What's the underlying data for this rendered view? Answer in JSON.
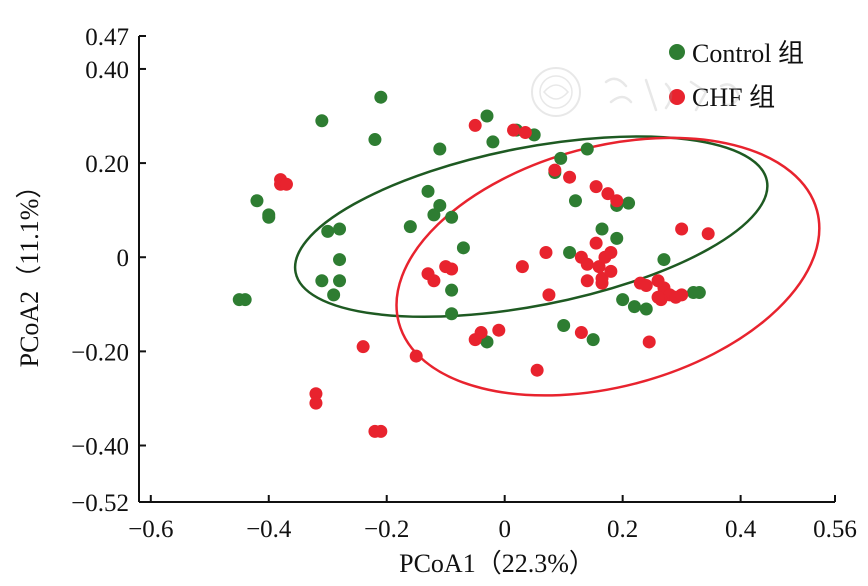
{
  "chart_data": {
    "type": "scatter",
    "xlabel": "PCoA1（22.3%）",
    "ylabel": "PCoA2（11.1%）",
    "xlim": [
      -0.62,
      0.56
    ],
    "ylim": [
      -0.52,
      0.47
    ],
    "xticks": [
      -0.6,
      -0.4,
      -0.2,
      0,
      0.2,
      0.4,
      0.56
    ],
    "xtick_labels": [
      "−0.6",
      "−0.4",
      "−0.2",
      "0",
      "0.2",
      "0.4",
      "0.56"
    ],
    "yticks": [
      -0.52,
      -0.4,
      -0.2,
      0,
      0.2,
      0.4,
      0.47
    ],
    "ytick_labels": [
      "−0.52",
      "−0.40",
      "−0.20",
      "0",
      "0.20",
      "0.40",
      "0.47"
    ],
    "grid": false,
    "legend_position": "top-right",
    "series": [
      {
        "name": "Control 组",
        "color": "#2e7d32",
        "points": [
          [
            -0.45,
            -0.09
          ],
          [
            -0.44,
            -0.09
          ],
          [
            -0.42,
            0.12
          ],
          [
            -0.4,
            0.09
          ],
          [
            -0.4,
            0.085
          ],
          [
            -0.31,
            0.29
          ],
          [
            -0.31,
            -0.05
          ],
          [
            -0.3,
            0.055
          ],
          [
            -0.29,
            -0.08
          ],
          [
            -0.28,
            0.06
          ],
          [
            -0.28,
            -0.005
          ],
          [
            -0.28,
            -0.05
          ],
          [
            -0.22,
            0.25
          ],
          [
            -0.21,
            0.34
          ],
          [
            -0.16,
            0.065
          ],
          [
            -0.13,
            0.14
          ],
          [
            -0.12,
            0.09
          ],
          [
            -0.11,
            0.11
          ],
          [
            -0.09,
            0.085
          ],
          [
            -0.09,
            -0.07
          ],
          [
            -0.09,
            -0.12
          ],
          [
            -0.11,
            0.23
          ],
          [
            -0.07,
            0.02
          ],
          [
            -0.04,
            -0.17
          ],
          [
            -0.03,
            -0.18
          ],
          [
            -0.03,
            0.3
          ],
          [
            -0.02,
            0.245
          ],
          [
            0.02,
            0.27
          ],
          [
            0.05,
            0.26
          ],
          [
            0.085,
            0.18
          ],
          [
            0.095,
            0.21
          ],
          [
            0.11,
            0.01
          ],
          [
            0.12,
            0.12
          ],
          [
            0.14,
            0.23
          ],
          [
            0.15,
            -0.175
          ],
          [
            0.1,
            -0.145
          ],
          [
            0.165,
            0.06
          ],
          [
            0.19,
            0.04
          ],
          [
            0.19,
            0.11
          ],
          [
            0.21,
            0.115
          ],
          [
            0.2,
            -0.09
          ],
          [
            0.22,
            -0.105
          ],
          [
            0.24,
            -0.11
          ],
          [
            0.27,
            -0.005
          ],
          [
            0.32,
            -0.075
          ],
          [
            0.33,
            -0.075
          ]
        ]
      },
      {
        "name": "CHF 组",
        "color": "#e8232e",
        "points": [
          [
            -0.38,
            0.165
          ],
          [
            -0.38,
            0.155
          ],
          [
            -0.37,
            0.155
          ],
          [
            -0.32,
            -0.29
          ],
          [
            -0.32,
            -0.31
          ],
          [
            -0.24,
            -0.19
          ],
          [
            -0.22,
            -0.37
          ],
          [
            -0.21,
            -0.37
          ],
          [
            -0.15,
            -0.21
          ],
          [
            -0.13,
            -0.035
          ],
          [
            -0.12,
            -0.05
          ],
          [
            -0.1,
            -0.02
          ],
          [
            -0.09,
            -0.025
          ],
          [
            -0.05,
            0.28
          ],
          [
            -0.05,
            -0.175
          ],
          [
            -0.04,
            -0.16
          ],
          [
            -0.01,
            -0.155
          ],
          [
            0.015,
            0.27
          ],
          [
            0.035,
            0.265
          ],
          [
            0.03,
            -0.02
          ],
          [
            0.07,
            0.01
          ],
          [
            0.075,
            -0.08
          ],
          [
            0.085,
            0.185
          ],
          [
            0.11,
            0.17
          ],
          [
            0.13,
            -0.16
          ],
          [
            0.13,
            0.0
          ],
          [
            0.14,
            -0.015
          ],
          [
            0.14,
            -0.05
          ],
          [
            0.155,
            0.15
          ],
          [
            0.155,
            0.03
          ],
          [
            0.16,
            -0.02
          ],
          [
            0.165,
            -0.055
          ],
          [
            0.165,
            -0.045
          ],
          [
            0.17,
            0.0
          ],
          [
            0.175,
            0.135
          ],
          [
            0.18,
            -0.03
          ],
          [
            0.18,
            0.01
          ],
          [
            0.19,
            0.12
          ],
          [
            0.23,
            -0.055
          ],
          [
            0.24,
            -0.06
          ],
          [
            0.245,
            -0.18
          ],
          [
            0.26,
            -0.05
          ],
          [
            0.27,
            -0.065
          ],
          [
            0.27,
            -0.075
          ],
          [
            0.28,
            -0.08
          ],
          [
            0.29,
            -0.085
          ],
          [
            0.3,
            -0.08
          ],
          [
            0.3,
            0.06
          ],
          [
            0.345,
            0.05
          ],
          [
            0.055,
            -0.24
          ],
          [
            0.265,
            -0.09
          ],
          [
            0.26,
            -0.085
          ]
        ]
      }
    ],
    "ellipses": [
      {
        "series": "Control 组",
        "cx": 0.045,
        "cy": 0.065,
        "rx": 0.407,
        "ry": 0.168,
        "angle_deg": -11,
        "color": "#1e5a22"
      },
      {
        "series": "CHF 组",
        "cx": 0.175,
        "cy": -0.02,
        "rx": 0.367,
        "ry": 0.255,
        "angle_deg": -15,
        "color": "#e8232e"
      }
    ]
  }
}
